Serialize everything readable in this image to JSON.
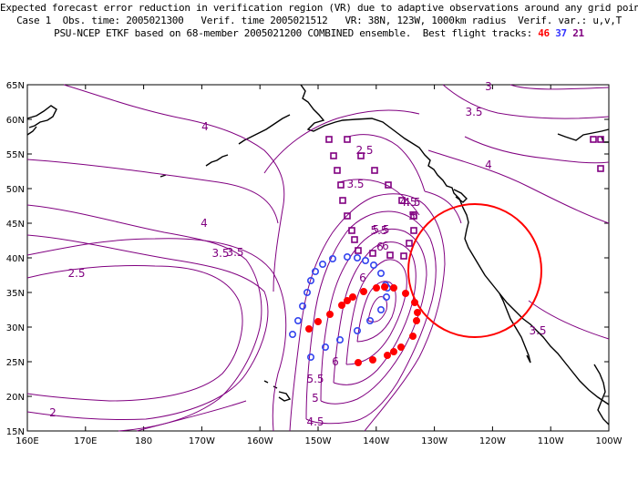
{
  "header": {
    "line1": "Expected forecast error reduction in verification region (VR) due to adaptive observations around any grid point.",
    "line2": "Case 1  Obs. time: 2005021300   Verif. time 2005021512   VR: 38N, 123W, 1000km radius  Verif. var.: u,v,T",
    "line3_prefix": "PSU-NCEP ETKF based on 68-member 2005021200 COMBINED ensemble.  Best flight tracks: ",
    "tracks": [
      {
        "label": "46",
        "color": "#ff0000"
      },
      {
        "label": "37",
        "color": "#3333ff"
      },
      {
        "label": "21",
        "color": "#800080"
      }
    ]
  },
  "map": {
    "lat_labels": [
      "65N",
      "60N",
      "55N",
      "50N",
      "45N",
      "40N",
      "35N",
      "30N",
      "25N",
      "20N",
      "15N"
    ],
    "lon_labels": [
      "160E",
      "170E",
      "180",
      "170W",
      "160W",
      "150W",
      "140W",
      "130W",
      "120W",
      "110W",
      "100W"
    ],
    "contour_color": "#800080",
    "vr_circle_color": "#ff0000",
    "contour_labels": [
      "2",
      "2.5",
      "3.5",
      "4",
      "3.5",
      "4",
      "4.5",
      "5",
      "5.5",
      "6",
      "6",
      "6",
      "5.5",
      "5",
      "4.5",
      "3.5",
      "3.5",
      "4",
      "4.5",
      "5",
      "5.5",
      "6",
      "2.5",
      "3.5",
      "3"
    ]
  }
}
